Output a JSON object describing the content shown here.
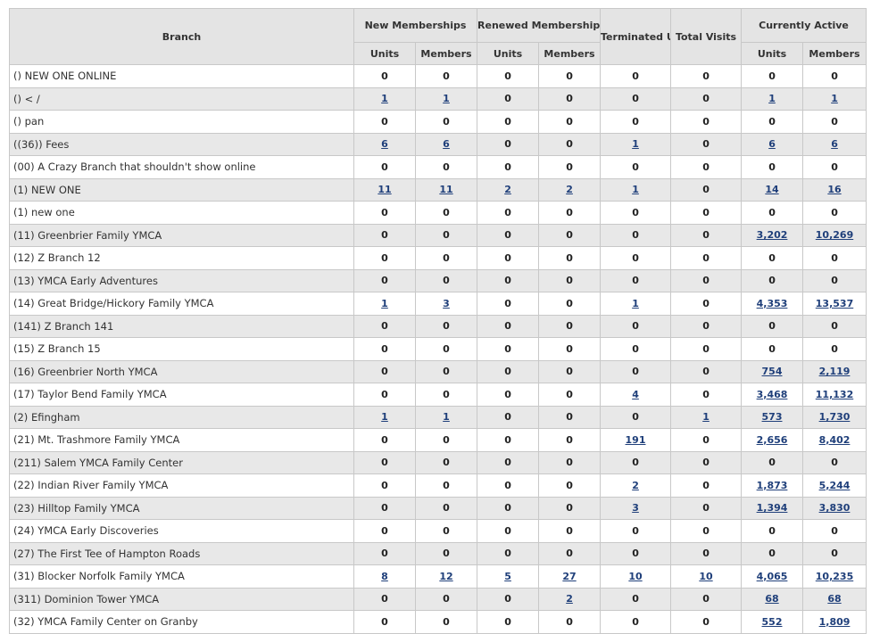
{
  "header": {
    "branch": "Branch",
    "new_memberships": "New Memberships",
    "renewed_memberships": "Renewed Memberships",
    "terminated_units": "Terminated Units",
    "total_visits": "Total Visits",
    "currently_active": "Currently Active",
    "units": "Units",
    "members": "Members"
  },
  "rows": [
    {
      "branch": "() NEW ONE ONLINE",
      "cells": [
        {
          "v": "0",
          "link": false
        },
        {
          "v": "0",
          "link": false
        },
        {
          "v": "0",
          "link": false
        },
        {
          "v": "0",
          "link": false
        },
        {
          "v": "0",
          "link": false
        },
        {
          "v": "0",
          "link": false
        },
        {
          "v": "0",
          "link": false
        },
        {
          "v": "0",
          "link": false
        }
      ]
    },
    {
      "branch": "() < /",
      "cells": [
        {
          "v": "1",
          "link": true
        },
        {
          "v": "1",
          "link": true
        },
        {
          "v": "0",
          "link": false
        },
        {
          "v": "0",
          "link": false
        },
        {
          "v": "0",
          "link": false
        },
        {
          "v": "0",
          "link": false
        },
        {
          "v": "1",
          "link": true
        },
        {
          "v": "1",
          "link": true
        }
      ]
    },
    {
      "branch": "() pan",
      "cells": [
        {
          "v": "0",
          "link": false
        },
        {
          "v": "0",
          "link": false
        },
        {
          "v": "0",
          "link": false
        },
        {
          "v": "0",
          "link": false
        },
        {
          "v": "0",
          "link": false
        },
        {
          "v": "0",
          "link": false
        },
        {
          "v": "0",
          "link": false
        },
        {
          "v": "0",
          "link": false
        }
      ]
    },
    {
      "branch": "((36)) Fees",
      "cells": [
        {
          "v": "6",
          "link": true
        },
        {
          "v": "6",
          "link": true
        },
        {
          "v": "0",
          "link": false
        },
        {
          "v": "0",
          "link": false
        },
        {
          "v": "1",
          "link": true
        },
        {
          "v": "0",
          "link": false
        },
        {
          "v": "6",
          "link": true
        },
        {
          "v": "6",
          "link": true
        }
      ]
    },
    {
      "branch": "(00) A Crazy Branch that shouldn't show online",
      "cells": [
        {
          "v": "0",
          "link": false
        },
        {
          "v": "0",
          "link": false
        },
        {
          "v": "0",
          "link": false
        },
        {
          "v": "0",
          "link": false
        },
        {
          "v": "0",
          "link": false
        },
        {
          "v": "0",
          "link": false
        },
        {
          "v": "0",
          "link": false
        },
        {
          "v": "0",
          "link": false
        }
      ]
    },
    {
      "branch": "(1) NEW ONE",
      "cells": [
        {
          "v": "11",
          "link": true
        },
        {
          "v": "11",
          "link": true
        },
        {
          "v": "2",
          "link": true
        },
        {
          "v": "2",
          "link": true
        },
        {
          "v": "1",
          "link": true
        },
        {
          "v": "0",
          "link": false
        },
        {
          "v": "14",
          "link": true
        },
        {
          "v": "16",
          "link": true
        }
      ]
    },
    {
      "branch": "(1) new one",
      "cells": [
        {
          "v": "0",
          "link": false
        },
        {
          "v": "0",
          "link": false
        },
        {
          "v": "0",
          "link": false
        },
        {
          "v": "0",
          "link": false
        },
        {
          "v": "0",
          "link": false
        },
        {
          "v": "0",
          "link": false
        },
        {
          "v": "0",
          "link": false
        },
        {
          "v": "0",
          "link": false
        }
      ]
    },
    {
      "branch": "(11) Greenbrier Family YMCA",
      "cells": [
        {
          "v": "0",
          "link": false
        },
        {
          "v": "0",
          "link": false
        },
        {
          "v": "0",
          "link": false
        },
        {
          "v": "0",
          "link": false
        },
        {
          "v": "0",
          "link": false
        },
        {
          "v": "0",
          "link": false
        },
        {
          "v": "3,202",
          "link": true
        },
        {
          "v": "10,269",
          "link": true
        }
      ]
    },
    {
      "branch": "(12) Z Branch 12",
      "cells": [
        {
          "v": "0",
          "link": false
        },
        {
          "v": "0",
          "link": false
        },
        {
          "v": "0",
          "link": false
        },
        {
          "v": "0",
          "link": false
        },
        {
          "v": "0",
          "link": false
        },
        {
          "v": "0",
          "link": false
        },
        {
          "v": "0",
          "link": false
        },
        {
          "v": "0",
          "link": false
        }
      ]
    },
    {
      "branch": "(13) YMCA Early Adventures",
      "cells": [
        {
          "v": "0",
          "link": false
        },
        {
          "v": "0",
          "link": false
        },
        {
          "v": "0",
          "link": false
        },
        {
          "v": "0",
          "link": false
        },
        {
          "v": "0",
          "link": false
        },
        {
          "v": "0",
          "link": false
        },
        {
          "v": "0",
          "link": false
        },
        {
          "v": "0",
          "link": false
        }
      ]
    },
    {
      "branch": "(14) Great Bridge/Hickory Family YMCA",
      "cells": [
        {
          "v": "1",
          "link": true
        },
        {
          "v": "3",
          "link": true
        },
        {
          "v": "0",
          "link": false
        },
        {
          "v": "0",
          "link": false
        },
        {
          "v": "1",
          "link": true
        },
        {
          "v": "0",
          "link": false
        },
        {
          "v": "4,353",
          "link": true
        },
        {
          "v": "13,537",
          "link": true
        }
      ]
    },
    {
      "branch": "(141) Z Branch 141",
      "cells": [
        {
          "v": "0",
          "link": false
        },
        {
          "v": "0",
          "link": false
        },
        {
          "v": "0",
          "link": false
        },
        {
          "v": "0",
          "link": false
        },
        {
          "v": "0",
          "link": false
        },
        {
          "v": "0",
          "link": false
        },
        {
          "v": "0",
          "link": false
        },
        {
          "v": "0",
          "link": false
        }
      ]
    },
    {
      "branch": "(15) Z Branch 15",
      "cells": [
        {
          "v": "0",
          "link": false
        },
        {
          "v": "0",
          "link": false
        },
        {
          "v": "0",
          "link": false
        },
        {
          "v": "0",
          "link": false
        },
        {
          "v": "0",
          "link": false
        },
        {
          "v": "0",
          "link": false
        },
        {
          "v": "0",
          "link": false
        },
        {
          "v": "0",
          "link": false
        }
      ]
    },
    {
      "branch": "(16) Greenbrier North YMCA",
      "cells": [
        {
          "v": "0",
          "link": false
        },
        {
          "v": "0",
          "link": false
        },
        {
          "v": "0",
          "link": false
        },
        {
          "v": "0",
          "link": false
        },
        {
          "v": "0",
          "link": false
        },
        {
          "v": "0",
          "link": false
        },
        {
          "v": "754",
          "link": true
        },
        {
          "v": "2,119",
          "link": true
        }
      ]
    },
    {
      "branch": "(17) Taylor Bend Family YMCA",
      "cells": [
        {
          "v": "0",
          "link": false
        },
        {
          "v": "0",
          "link": false
        },
        {
          "v": "0",
          "link": false
        },
        {
          "v": "0",
          "link": false
        },
        {
          "v": "4",
          "link": true
        },
        {
          "v": "0",
          "link": false
        },
        {
          "v": "3,468",
          "link": true
        },
        {
          "v": "11,132",
          "link": true
        }
      ]
    },
    {
      "branch": "(2) Efingham",
      "cells": [
        {
          "v": "1",
          "link": true
        },
        {
          "v": "1",
          "link": true
        },
        {
          "v": "0",
          "link": false
        },
        {
          "v": "0",
          "link": false
        },
        {
          "v": "0",
          "link": false
        },
        {
          "v": "1",
          "link": true
        },
        {
          "v": "573",
          "link": true
        },
        {
          "v": "1,730",
          "link": true
        }
      ]
    },
    {
      "branch": "(21) Mt. Trashmore Family YMCA",
      "cells": [
        {
          "v": "0",
          "link": false
        },
        {
          "v": "0",
          "link": false
        },
        {
          "v": "0",
          "link": false
        },
        {
          "v": "0",
          "link": false
        },
        {
          "v": "191",
          "link": true
        },
        {
          "v": "0",
          "link": false
        },
        {
          "v": "2,656",
          "link": true
        },
        {
          "v": "8,402",
          "link": true
        }
      ]
    },
    {
      "branch": "(211) Salem YMCA Family Center",
      "cells": [
        {
          "v": "0",
          "link": false
        },
        {
          "v": "0",
          "link": false
        },
        {
          "v": "0",
          "link": false
        },
        {
          "v": "0",
          "link": false
        },
        {
          "v": "0",
          "link": false
        },
        {
          "v": "0",
          "link": false
        },
        {
          "v": "0",
          "link": false
        },
        {
          "v": "0",
          "link": false
        }
      ]
    },
    {
      "branch": "(22) Indian River Family YMCA",
      "cells": [
        {
          "v": "0",
          "link": false
        },
        {
          "v": "0",
          "link": false
        },
        {
          "v": "0",
          "link": false
        },
        {
          "v": "0",
          "link": false
        },
        {
          "v": "2",
          "link": true
        },
        {
          "v": "0",
          "link": false
        },
        {
          "v": "1,873",
          "link": true
        },
        {
          "v": "5,244",
          "link": true
        }
      ]
    },
    {
      "branch": "(23) Hilltop Family YMCA",
      "cells": [
        {
          "v": "0",
          "link": false
        },
        {
          "v": "0",
          "link": false
        },
        {
          "v": "0",
          "link": false
        },
        {
          "v": "0",
          "link": false
        },
        {
          "v": "3",
          "link": true
        },
        {
          "v": "0",
          "link": false
        },
        {
          "v": "1,394",
          "link": true
        },
        {
          "v": "3,830",
          "link": true
        }
      ]
    },
    {
      "branch": "(24) YMCA Early Discoveries",
      "cells": [
        {
          "v": "0",
          "link": false
        },
        {
          "v": "0",
          "link": false
        },
        {
          "v": "0",
          "link": false
        },
        {
          "v": "0",
          "link": false
        },
        {
          "v": "0",
          "link": false
        },
        {
          "v": "0",
          "link": false
        },
        {
          "v": "0",
          "link": false
        },
        {
          "v": "0",
          "link": false
        }
      ]
    },
    {
      "branch": "(27) The First Tee of Hampton Roads",
      "cells": [
        {
          "v": "0",
          "link": false
        },
        {
          "v": "0",
          "link": false
        },
        {
          "v": "0",
          "link": false
        },
        {
          "v": "0",
          "link": false
        },
        {
          "v": "0",
          "link": false
        },
        {
          "v": "0",
          "link": false
        },
        {
          "v": "0",
          "link": false
        },
        {
          "v": "0",
          "link": false
        }
      ]
    },
    {
      "branch": "(31) Blocker Norfolk Family YMCA",
      "cells": [
        {
          "v": "8",
          "link": true
        },
        {
          "v": "12",
          "link": true
        },
        {
          "v": "5",
          "link": true
        },
        {
          "v": "27",
          "link": true
        },
        {
          "v": "10",
          "link": true
        },
        {
          "v": "10",
          "link": true
        },
        {
          "v": "4,065",
          "link": true
        },
        {
          "v": "10,235",
          "link": true
        }
      ]
    },
    {
      "branch": "(311) Dominion Tower YMCA",
      "cells": [
        {
          "v": "0",
          "link": false
        },
        {
          "v": "0",
          "link": false
        },
        {
          "v": "0",
          "link": false
        },
        {
          "v": "2",
          "link": true
        },
        {
          "v": "0",
          "link": false
        },
        {
          "v": "0",
          "link": false
        },
        {
          "v": "68",
          "link": true
        },
        {
          "v": "68",
          "link": true
        }
      ]
    },
    {
      "branch": "(32) YMCA Family Center on Granby",
      "cells": [
        {
          "v": "0",
          "link": false
        },
        {
          "v": "0",
          "link": false
        },
        {
          "v": "0",
          "link": false
        },
        {
          "v": "0",
          "link": false
        },
        {
          "v": "0",
          "link": false
        },
        {
          "v": "0",
          "link": false
        },
        {
          "v": "552",
          "link": true
        },
        {
          "v": "1,809",
          "link": true
        }
      ]
    }
  ],
  "colors": {
    "header_bg": "#e4e4e4",
    "row_alt_bg": "#e8e8e8",
    "link": "#1f3f7a",
    "border": "#c8c8c8"
  }
}
